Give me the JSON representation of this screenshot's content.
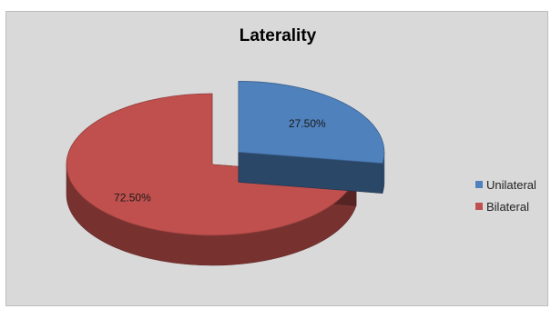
{
  "chart_data": {
    "type": "pie",
    "style": "3d-exploded",
    "title": "Laterality",
    "categories": [
      "Unilateral",
      "Bilateral"
    ],
    "values": [
      27.5,
      72.5
    ],
    "data_labels": [
      "27.50%",
      "72.50%"
    ],
    "colors": [
      "#4f81bd",
      "#c0504d"
    ],
    "legend_position": "right",
    "exploded_slice": "Unilateral"
  }
}
